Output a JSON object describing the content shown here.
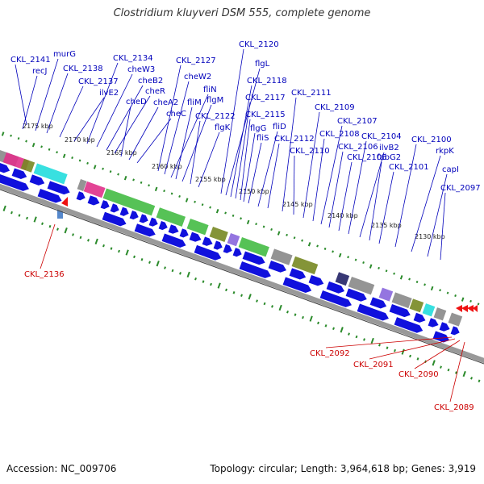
{
  "title": "Clostridium kluyveri DSM 555, complete genome",
  "footer": {
    "accession": "Accession: NC_009706",
    "summary": "Topology: circular; Length: 3,964,618 bp; Genes: 3,919"
  },
  "colors": {
    "forward_gene": "#1010dd",
    "reverse_gene": "#ee1111",
    "label_forward": "#0000bb",
    "label_reverse": "#cc0000",
    "backbone": "#999999",
    "tick": "#2a8a2a",
    "cog_magenta": "#e0308a",
    "cog_cyan": "#22dddd",
    "cog_green": "#44bb44",
    "cog_olive": "#778822",
    "cog_gray": "#888888",
    "cog_navy": "#222266",
    "cog_purple": "#8866dd"
  },
  "kbp_ticks": [
    {
      "id": "kbp-2175",
      "label": "2175 kbp"
    },
    {
      "id": "kbp-2170",
      "label": "2170 kbp"
    },
    {
      "id": "kbp-2165",
      "label": "2165 kbp"
    },
    {
      "id": "kbp-2160",
      "label": "2160 kbp"
    },
    {
      "id": "kbp-2155",
      "label": "2155 kbp"
    },
    {
      "id": "kbp-2150",
      "label": "2150 kbp"
    },
    {
      "id": "kbp-2145",
      "label": "2145 kbp"
    },
    {
      "id": "kbp-2140",
      "label": "2140 kbp"
    },
    {
      "id": "kbp-2135",
      "label": "2135 kbp"
    },
    {
      "id": "kbp-2130",
      "label": "2130 kbp"
    }
  ],
  "forward_labels": [
    "CKL_2141",
    "recJ",
    "murG",
    "CKL_2138",
    "CKL_2137",
    "ilvE2",
    "CKL_2134",
    "cheW3",
    "cheB2",
    "cheR",
    "cheD",
    "cheA2",
    "cheC",
    "CKL_2127",
    "cheW2",
    "fliN",
    "fliM",
    "flgM",
    "CKL_2122",
    "flgK",
    "CKL_2120",
    "flgL",
    "CKL_2118",
    "CKL_2117",
    "CKL_2115",
    "flgG",
    "fliS",
    "fliD",
    "CKL_2112",
    "CKL_2111",
    "CKL_2110",
    "CKL_2109",
    "CKL_2108",
    "CKL_2107",
    "CKL_2106",
    "CKL_2105",
    "CKL_2104",
    "ilvB2",
    "fabG2",
    "CKL_2101",
    "CKL_2100",
    "rkpK",
    "capI",
    "CKL_2097"
  ],
  "reverse_labels": [
    "CKL_2136",
    "CKL_2092",
    "CKL_2091",
    "CKL_2090",
    "CKL_2089"
  ]
}
